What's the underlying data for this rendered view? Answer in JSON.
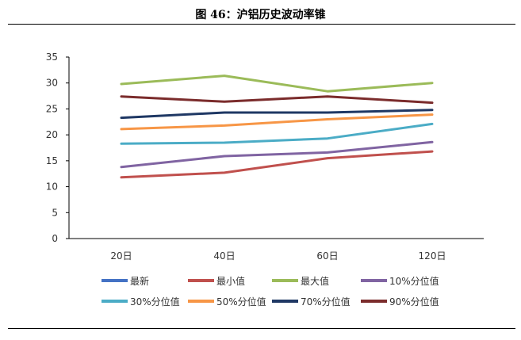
{
  "figure": {
    "title": "图 46：沪铝历史波动率锥"
  },
  "chart_data": {
    "type": "line",
    "title": "图 46：沪铝历史波动率锥",
    "xlabel": "",
    "ylabel": "",
    "categories": [
      "20日",
      "40日",
      "60日",
      "120日"
    ],
    "ylim": [
      0,
      35
    ],
    "yticks": [
      0,
      5,
      10,
      15,
      20,
      25,
      30,
      35
    ],
    "grid": false,
    "legend_position": "bottom",
    "series": [
      {
        "name": "最新",
        "color": "#4472C4",
        "values": [
          null,
          null,
          null,
          null
        ]
      },
      {
        "name": "最小值",
        "color": "#C0504D",
        "values": [
          11.8,
          12.7,
          15.5,
          16.8
        ]
      },
      {
        "name": "最大值",
        "color": "#9BBB59",
        "values": [
          29.8,
          31.4,
          28.4,
          30.0
        ]
      },
      {
        "name": "10%分位值",
        "color": "#8064A2",
        "values": [
          13.8,
          15.9,
          16.6,
          18.6
        ]
      },
      {
        "name": "30%分位值",
        "color": "#4BACC6",
        "values": [
          18.3,
          18.5,
          19.3,
          22.1
        ]
      },
      {
        "name": "50%分位值",
        "color": "#F79646",
        "values": [
          21.1,
          21.8,
          23.0,
          23.9
        ]
      },
      {
        "name": "70%分位值",
        "color": "#1F3864",
        "values": [
          23.3,
          24.3,
          24.3,
          24.8
        ]
      },
      {
        "name": "90%分位值",
        "color": "#7B2C2C",
        "values": [
          27.4,
          26.4,
          27.4,
          26.2
        ]
      }
    ]
  }
}
